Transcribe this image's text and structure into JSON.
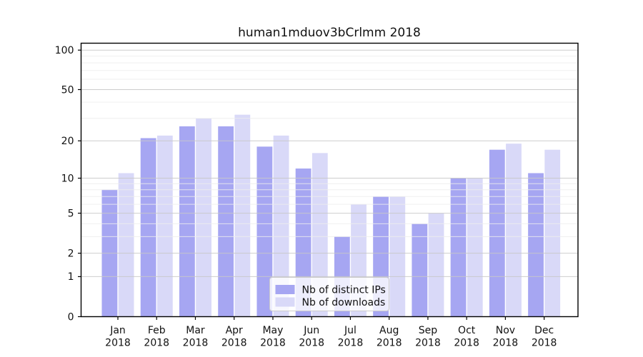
{
  "chart_data": {
    "type": "bar",
    "title": "human1mduov3bCrlmm 2018",
    "categories": [
      {
        "label": "Jan",
        "sublabel": "2018"
      },
      {
        "label": "Feb",
        "sublabel": "2018"
      },
      {
        "label": "Mar",
        "sublabel": "2018"
      },
      {
        "label": "Apr",
        "sublabel": "2018"
      },
      {
        "label": "May",
        "sublabel": "2018"
      },
      {
        "label": "Jun",
        "sublabel": "2018"
      },
      {
        "label": "Jul",
        "sublabel": "2018"
      },
      {
        "label": "Aug",
        "sublabel": "2018"
      },
      {
        "label": "Sep",
        "sublabel": "2018"
      },
      {
        "label": "Oct",
        "sublabel": "2018"
      },
      {
        "label": "Nov",
        "sublabel": "2018"
      },
      {
        "label": "Dec",
        "sublabel": "2018"
      }
    ],
    "series": [
      {
        "name": "Nb of distinct IPs",
        "color": "#a6a6f2",
        "values": [
          8,
          21,
          26,
          26,
          18,
          12,
          3,
          7,
          4,
          10,
          17,
          11
        ]
      },
      {
        "name": "Nb of downloads",
        "color": "#d9d9f8",
        "values": [
          11,
          22,
          30,
          32,
          22,
          16,
          6,
          7,
          5,
          10,
          19,
          17
        ]
      }
    ],
    "y_axis": {
      "scale": "log10(value+1)",
      "tick_values": [
        100,
        50,
        20,
        10,
        5,
        2,
        1,
        0
      ],
      "minor_tick_values": [
        90,
        80,
        70,
        60,
        40,
        30,
        9,
        8,
        7,
        6,
        4,
        3
      ],
      "range": [
        0,
        113
      ]
    },
    "grid": {
      "major_color": "#c8c8c8",
      "minor_color": "#ededed",
      "drawn_over_bars": true
    },
    "legend": {
      "position": "lower-center"
    },
    "colors": {
      "axis": "#000000",
      "background": "#ffffff",
      "text": "#111111"
    }
  }
}
